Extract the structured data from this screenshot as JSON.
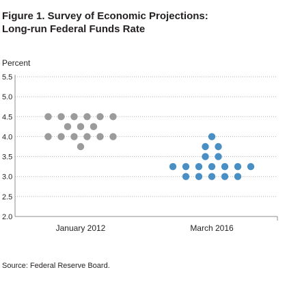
{
  "title_line1": "Figure 1. Survey of Economic Projections:",
  "title_line2": "Long-run Federal Funds Rate",
  "ylabel": "Percent",
  "source": "Source: Federal Reserve Board.",
  "chart_data": {
    "type": "scatter",
    "title": "Figure 1. Survey of Economic Projections: Long-run Federal Funds Rate",
    "ylabel": "Percent",
    "xlabel": "",
    "ylim": [
      2.0,
      5.5
    ],
    "yticks": [
      2.0,
      2.5,
      3.0,
      3.5,
      4.0,
      4.5,
      5.0,
      5.5
    ],
    "ytick_labels": [
      "2.0",
      "2.5",
      "3.0",
      "3.5",
      "4.0",
      "4.5",
      "5.0",
      "5.5"
    ],
    "grid": "horizontal",
    "categories": [
      "January 2012",
      "March 2016"
    ],
    "series": [
      {
        "category": "January 2012",
        "color": "#9b9b9b",
        "rows": [
          {
            "y": 3.75,
            "count": 1
          },
          {
            "y": 4.0,
            "count": 6
          },
          {
            "y": 4.25,
            "count": 3
          },
          {
            "y": 4.5,
            "count": 6
          }
        ]
      },
      {
        "category": "March 2016",
        "color": "#4a8fc4",
        "rows": [
          {
            "y": 3.0,
            "count": 5
          },
          {
            "y": 3.25,
            "count": 7
          },
          {
            "y": 3.5,
            "count": 2
          },
          {
            "y": 3.75,
            "count": 2
          },
          {
            "y": 4.0,
            "count": 1
          }
        ]
      }
    ]
  }
}
